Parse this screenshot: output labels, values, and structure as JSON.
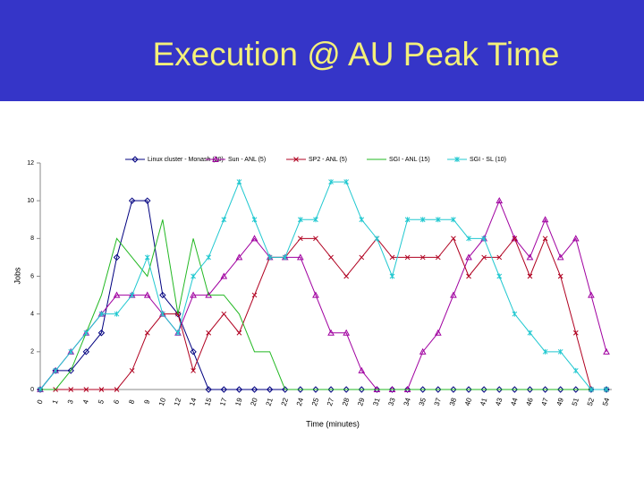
{
  "header": {
    "title": "Execution @ AU Peak Time"
  },
  "chart_data": {
    "type": "line",
    "xlabel": "Time (minutes)",
    "ylabel": "Jobs",
    "categories": [
      "0",
      "1",
      "3",
      "4",
      "5",
      "6",
      "8",
      "9",
      "10",
      "12",
      "14",
      "15",
      "17",
      "19",
      "20",
      "21",
      "22",
      "24",
      "25",
      "27",
      "28",
      "29",
      "31",
      "33",
      "34",
      "35",
      "37",
      "38",
      "40",
      "41",
      "43",
      "44",
      "46",
      "47",
      "49",
      "51",
      "52",
      "54"
    ],
    "ylim": [
      0,
      12
    ],
    "yticks": [
      0,
      2,
      4,
      6,
      8,
      10,
      12
    ],
    "legend": "top",
    "series": [
      {
        "name": "Linux cluster - Monash (20)",
        "color": "#000080",
        "marker": "diamond",
        "values": [
          0,
          1,
          1,
          2,
          3,
          7,
          10,
          10,
          5,
          4,
          2,
          0,
          0,
          0,
          0,
          0,
          0,
          0,
          0,
          0,
          0,
          0,
          0,
          0,
          0,
          0,
          0,
          0,
          0,
          0,
          0,
          0,
          0,
          0,
          0,
          0,
          0,
          0
        ]
      },
      {
        "name": "Sun - ANL (5)",
        "color": "#a000a0",
        "marker": "triangle",
        "values": [
          0,
          1,
          2,
          3,
          4,
          5,
          5,
          5,
          4,
          3,
          5,
          5,
          6,
          7,
          8,
          7,
          7,
          7,
          5,
          3,
          3,
          1,
          0,
          0,
          0,
          2,
          3,
          5,
          7,
          8,
          10,
          8,
          7,
          9,
          7,
          8,
          5,
          2
        ]
      },
      {
        "name": "SP2 - ANL (5)",
        "color": "#b00020",
        "marker": "cross",
        "values": [
          0,
          0,
          0,
          0,
          0,
          0,
          1,
          3,
          4,
          4,
          1,
          3,
          4,
          3,
          5,
          7,
          7,
          8,
          8,
          7,
          6,
          7,
          8,
          7,
          7,
          7,
          7,
          8,
          6,
          7,
          7,
          8,
          6,
          8,
          6,
          3,
          0,
          0
        ]
      },
      {
        "name": "SGI - ANL (15)",
        "color": "#22b822",
        "marker": "none",
        "values": [
          0,
          0,
          1,
          3,
          5,
          8,
          7,
          6,
          9,
          4,
          8,
          5,
          5,
          4,
          2,
          2,
          0,
          0,
          0,
          0,
          0,
          0,
          0,
          0,
          0,
          0,
          0,
          0,
          0,
          0,
          0,
          0,
          0,
          0,
          0,
          0,
          0,
          0
        ]
      },
      {
        "name": "SGI - SL (10)",
        "color": "#20c8d0",
        "marker": "star",
        "values": [
          0,
          1,
          2,
          3,
          4,
          4,
          5,
          7,
          4,
          3,
          6,
          7,
          9,
          11,
          9,
          7,
          7,
          9,
          9,
          11,
          11,
          9,
          8,
          6,
          9,
          9,
          9,
          9,
          8,
          8,
          6,
          4,
          3,
          2,
          2,
          1,
          0,
          0
        ]
      }
    ]
  }
}
